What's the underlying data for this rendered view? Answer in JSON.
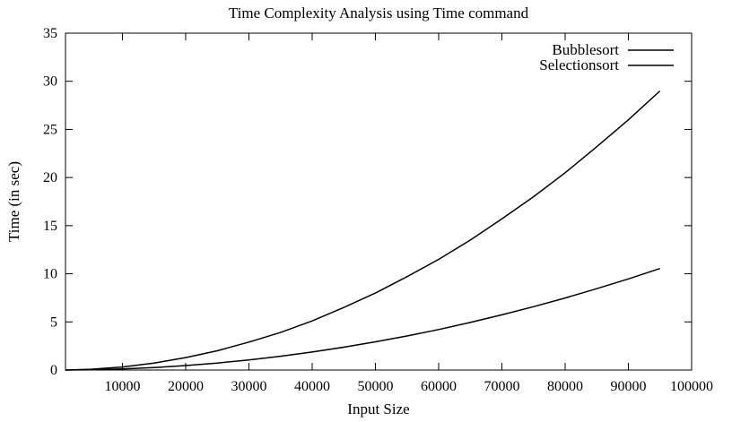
{
  "chart_data": {
    "type": "line",
    "title": "Time Complexity Analysis using Time command",
    "xlabel": "Input Size",
    "ylabel": "Time (in sec)",
    "xlim": [
      1000,
      100000
    ],
    "ylim": [
      0,
      35
    ],
    "xticks": [
      10000,
      20000,
      30000,
      40000,
      50000,
      60000,
      70000,
      80000,
      90000,
      100000
    ],
    "yticks": [
      0,
      5,
      10,
      15,
      20,
      25,
      30,
      35
    ],
    "grid": false,
    "legend_position": "top-right",
    "line_color": "#000000",
    "series": [
      {
        "name": "Bubblesort",
        "x": [
          1000,
          5000,
          10000,
          15000,
          20000,
          25000,
          30000,
          35000,
          40000,
          45000,
          50000,
          55000,
          60000,
          65000,
          70000,
          75000,
          80000,
          85000,
          90000,
          95000
        ],
        "y": [
          0.0,
          0.08,
          0.32,
          0.73,
          1.29,
          2.0,
          2.9,
          3.9,
          5.1,
          6.5,
          8.0,
          9.7,
          11.5,
          13.5,
          15.7,
          18.0,
          20.5,
          23.2,
          26.0,
          29.0
        ]
      },
      {
        "name": "Selectionsort",
        "x": [
          1000,
          5000,
          10000,
          15000,
          20000,
          25000,
          30000,
          35000,
          40000,
          45000,
          50000,
          55000,
          60000,
          65000,
          70000,
          75000,
          80000,
          85000,
          90000,
          95000
        ],
        "y": [
          0.0,
          0.03,
          0.12,
          0.26,
          0.47,
          0.73,
          1.05,
          1.43,
          1.87,
          2.37,
          2.93,
          3.54,
          4.21,
          4.94,
          5.73,
          6.58,
          7.48,
          8.45,
          9.47,
          10.55
        ]
      }
    ]
  }
}
